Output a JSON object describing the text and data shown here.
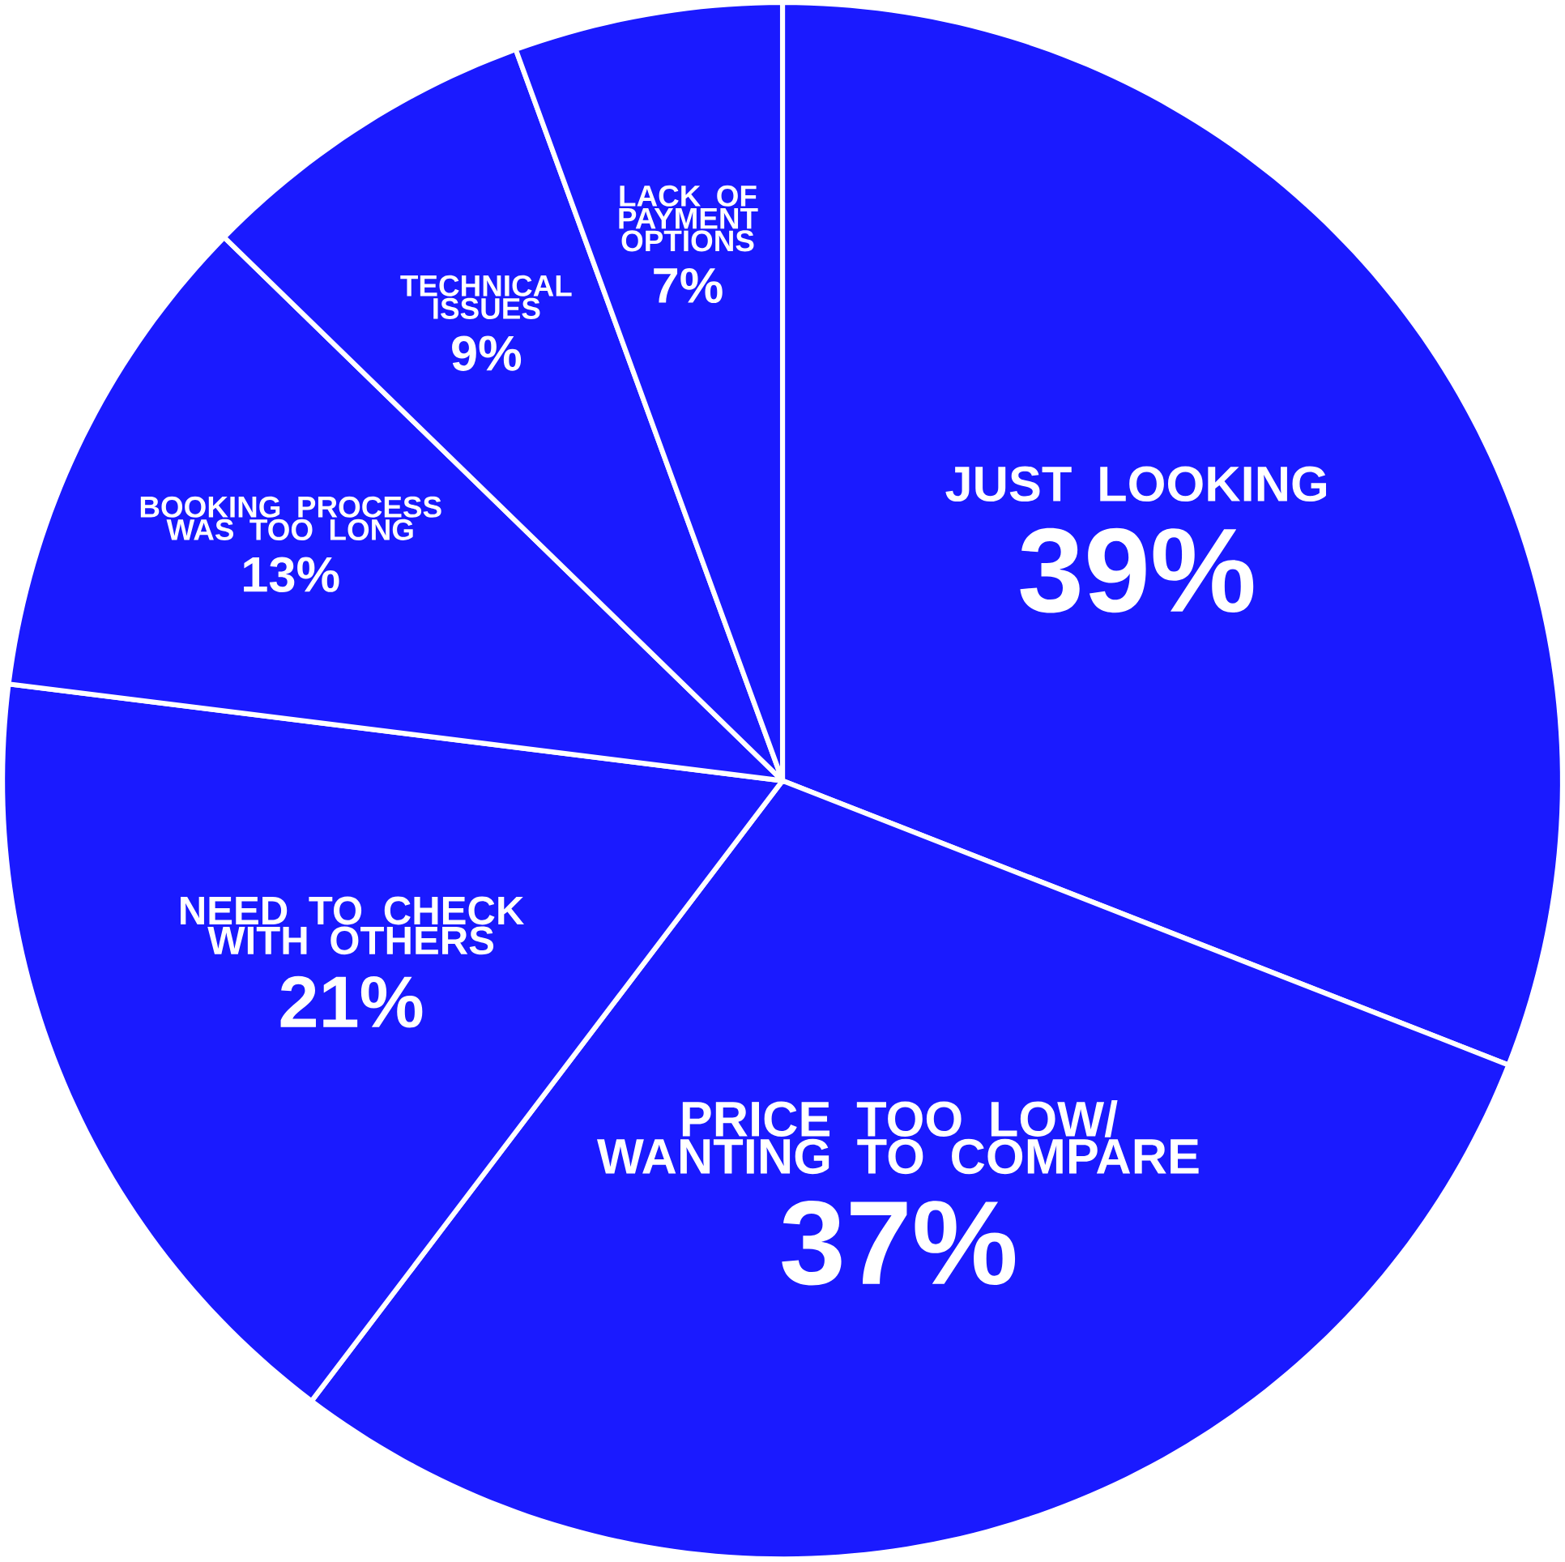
{
  "chart_data": {
    "type": "pie",
    "categories": [
      "JUST LOOKING",
      "PRICE TOO LOW/ WANTING TO COMPARE",
      "NEED TO CHECK WITH OTHERS",
      "BOOKING PROCESS WAS TOO LONG",
      "TECHNICAL ISSUES",
      "LACK OF PAYMENT OPTIONS"
    ],
    "values": [
      39,
      37,
      21,
      13,
      9,
      7
    ],
    "value_labels": [
      "39%",
      "37%",
      "21%",
      "13%",
      "9%",
      "7%"
    ],
    "colors": [
      "#1a1aff",
      "#1a1aff",
      "#1a1aff",
      "#1a1aff",
      "#1a1aff",
      "#1a1aff"
    ]
  }
}
